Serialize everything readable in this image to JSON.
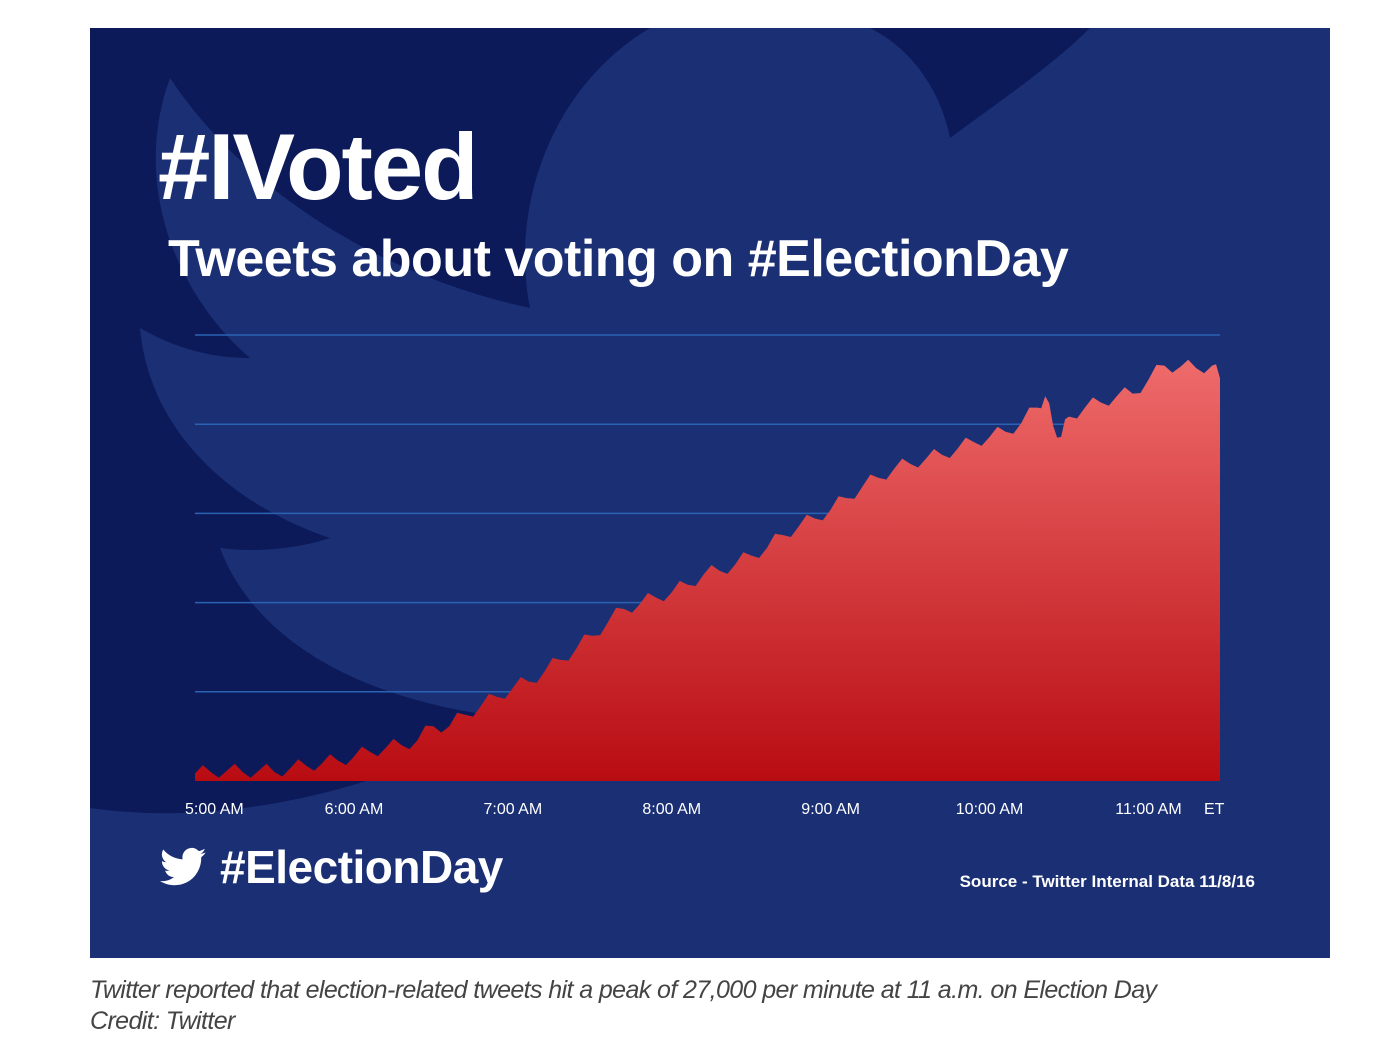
{
  "colors": {
    "background": "#0c1a5a",
    "bird_shape": "#1b2f74",
    "area_top": "#ef6b6b",
    "area_bottom": "#b80c12",
    "gridline": "#2a63b3",
    "text": "#ffffff",
    "caption_text": "#444444"
  },
  "graphic": {
    "headline": "#IVoted",
    "footer_icon": "twitter-bird-icon",
    "footer_hashtag": "#ElectionDay",
    "source": "Source - Twitter Internal Data 11/8/16"
  },
  "caption": {
    "line1": "Twitter reported that election-related tweets hit a peak of 27,000 per minute at 11 a.m. on Election Day",
    "line2": "Credit: Twitter"
  },
  "chart_data": {
    "type": "area",
    "title": "Tweets about voting on #ElectionDay",
    "xlabel": "",
    "ylabel": "",
    "x_unit_label": "ET",
    "tick_labels": [
      "5:00 AM",
      "6:00 AM",
      "7:00 AM",
      "8:00 AM",
      "9:00 AM",
      "10:00 AM",
      "11:00 AM"
    ],
    "x_range_hours": [
      5,
      11.45
    ],
    "ylim": [
      0,
      35
    ],
    "y_gridlines": [
      7,
      14,
      21,
      28,
      35
    ],
    "grid": true,
    "y_tick_labels_shown": false,
    "series": [
      {
        "x": [
          5.0,
          5.1,
          5.2,
          5.3,
          5.4,
          5.5,
          5.6,
          5.7,
          5.8,
          5.9,
          6.0,
          6.1,
          6.2,
          6.3,
          6.4,
          6.5,
          6.6,
          6.7,
          6.8,
          6.9,
          7.0,
          7.1,
          7.2,
          7.3,
          7.4,
          7.5,
          7.6,
          7.7,
          7.8,
          7.9,
          8.0,
          8.1,
          8.2,
          8.3,
          8.4,
          8.5,
          8.6,
          8.7,
          8.8,
          8.9,
          9.0,
          9.1,
          9.2,
          9.3,
          9.4,
          9.5,
          9.6,
          9.7,
          9.8,
          9.9,
          10.0,
          10.1,
          10.2,
          10.3,
          10.35,
          10.4,
          10.45,
          10.5,
          10.6,
          10.7,
          10.8,
          10.9,
          11.0,
          11.1,
          11.2,
          11.3,
          11.4,
          11.45
        ],
        "values": [
          0.6,
          0.7,
          0.8,
          0.7,
          0.8,
          0.7,
          1.0,
          1.2,
          1.4,
          1.6,
          1.9,
          2.3,
          2.6,
          2.8,
          3.2,
          4.3,
          4.3,
          5.2,
          5.9,
          6.6,
          7.3,
          7.8,
          8.6,
          9.5,
          10.4,
          11.4,
          12.5,
          13.5,
          13.9,
          14.4,
          14.8,
          15.4,
          16.2,
          16.5,
          17.0,
          17.7,
          18.3,
          19.3,
          20.0,
          20.6,
          21.3,
          22.2,
          23.1,
          23.8,
          24.5,
          24.9,
          25.3,
          25.6,
          26.1,
          26.6,
          27.0,
          27.4,
          28.1,
          29.3,
          30.2,
          27.9,
          27.0,
          28.6,
          29.3,
          29.7,
          30.2,
          30.4,
          31.5,
          32.6,
          32.5,
          32.4,
          32.6,
          31.6
        ]
      }
    ]
  }
}
